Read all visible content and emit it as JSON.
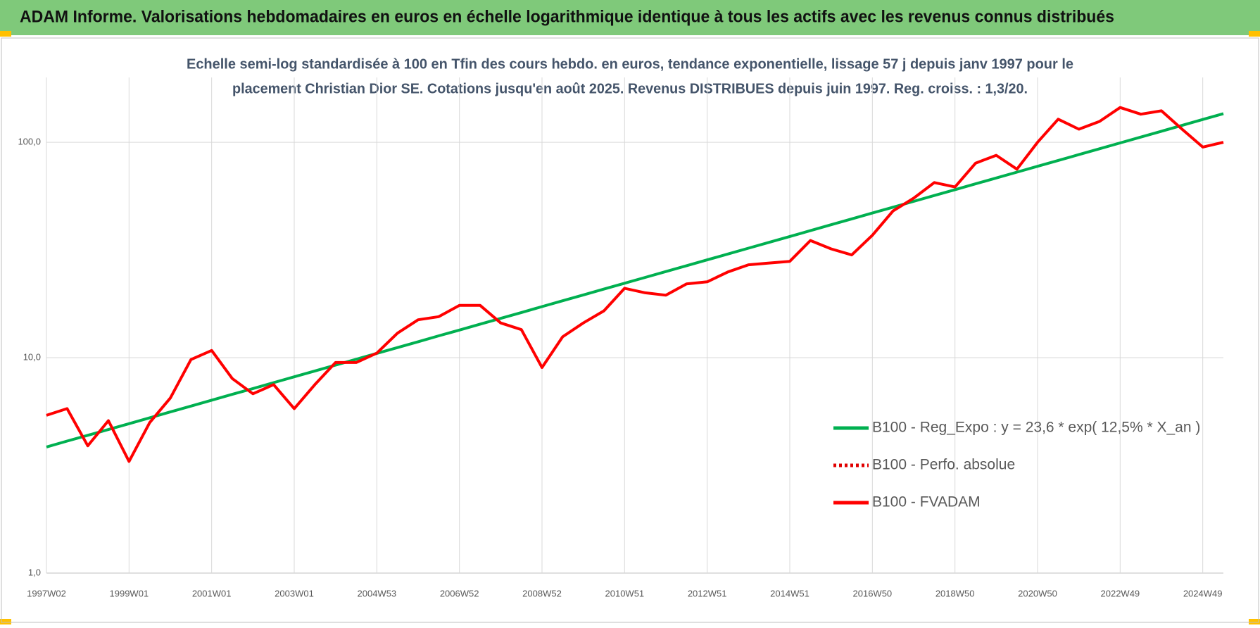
{
  "header": {
    "title": "ADAM Informe. Valorisations hebdomadaires en euros en échelle logarithmique identique à tous les actifs avec les revenus connus distribués"
  },
  "chart_data": {
    "type": "line",
    "subtitle": [
      "Echelle semi-log standardisée à 100 en Tfin des cours hebdo. en euros, tendance exponentielle, lissage 57 j depuis janv 1997 pour le",
      "placement Christian Dior SE. Cotations jusqu'en août 2025. Revenus DISTRIBUES depuis juin 1997. Reg. croiss. : 1,3/20."
    ],
    "categories": [
      "1997W02",
      null,
      null,
      null,
      "1999W01",
      null,
      null,
      null,
      "2001W01",
      null,
      null,
      null,
      "2003W01",
      null,
      null,
      null,
      "2004W53",
      null,
      null,
      null,
      "2006W52",
      null,
      null,
      null,
      "2008W52",
      null,
      null,
      null,
      "2010W51",
      null,
      null,
      null,
      "2012W51",
      null,
      null,
      null,
      "2014W51",
      null,
      null,
      null,
      "2016W50",
      null,
      null,
      null,
      "2018W50",
      null,
      null,
      null,
      "2020W50",
      null,
      null,
      null,
      "2022W49",
      null,
      null,
      null,
      "2024W49",
      null
    ],
    "series": [
      {
        "name": "B100 - Reg_Expo : y = 23,6 * exp( 12,5% *  X_an )",
        "color": "#00b050",
        "dash": "solid",
        "values": [
          3.85,
          4.1,
          4.36,
          4.64,
          4.94,
          5.26,
          5.6,
          5.96,
          6.35,
          6.76,
          7.19,
          7.66,
          8.15,
          8.68,
          9.24,
          9.83,
          10.47,
          11.14,
          11.86,
          12.63,
          13.44,
          14.31,
          15.23,
          16.21,
          17.26,
          18.37,
          19.56,
          20.82,
          22.16,
          23.59,
          25.11,
          26.73,
          28.46,
          30.29,
          32.25,
          34.33,
          36.54,
          38.9,
          41.41,
          44.08,
          46.92,
          49.95,
          53.17,
          56.6,
          60.25,
          64.14,
          68.28,
          72.68,
          77.37,
          82.36,
          87.67,
          93.33,
          99.35,
          105.76,
          112.58,
          119.84,
          127.57,
          135.8
        ]
      },
      {
        "name": "B100 - Perfo. absolue",
        "color": "#e00000",
        "dash": "dotted",
        "values": [
          5.4,
          5.8,
          3.9,
          5.1,
          3.3,
          5.0,
          6.5,
          9.8,
          10.8,
          8.0,
          6.8,
          7.5,
          5.8,
          7.5,
          9.5,
          9.5,
          10.5,
          13.0,
          15.0,
          15.5,
          17.5,
          17.5,
          14.5,
          13.5,
          9.0,
          12.5,
          14.5,
          16.5,
          21.0,
          20.0,
          19.5,
          22.0,
          22.5,
          25.0,
          27.0,
          27.5,
          28.0,
          35.0,
          32.0,
          30.0,
          37.0,
          48.0,
          55.0,
          65.0,
          62.0,
          80.0,
          87.0,
          75.0,
          100.0,
          128.0,
          115.0,
          125.0,
          145.0,
          135.0,
          140.0,
          115.0,
          95.0,
          100.0
        ]
      },
      {
        "name": "B100 - FVADAM",
        "color": "#ff0000",
        "dash": "solid",
        "values": [
          5.4,
          5.8,
          3.9,
          5.1,
          3.3,
          5.0,
          6.5,
          9.8,
          10.8,
          8.0,
          6.8,
          7.5,
          5.8,
          7.5,
          9.5,
          9.5,
          10.5,
          13.0,
          15.0,
          15.5,
          17.5,
          17.5,
          14.5,
          13.5,
          9.0,
          12.5,
          14.5,
          16.5,
          21.0,
          20.0,
          19.5,
          22.0,
          22.5,
          25.0,
          27.0,
          27.5,
          28.0,
          35.0,
          32.0,
          30.0,
          37.0,
          48.0,
          55.0,
          65.0,
          62.0,
          80.0,
          87.0,
          75.0,
          100.0,
          128.0,
          115.0,
          125.0,
          145.0,
          135.0,
          140.0,
          115.0,
          95.0,
          100.0
        ]
      }
    ],
    "log_scale": true,
    "grid": true,
    "ylim": [
      1,
      200
    ],
    "yticks": [
      {
        "value": 1,
        "label": "1,0"
      },
      {
        "value": 10,
        "label": "10,0"
      },
      {
        "value": 100,
        "label": "100,0"
      }
    ]
  }
}
